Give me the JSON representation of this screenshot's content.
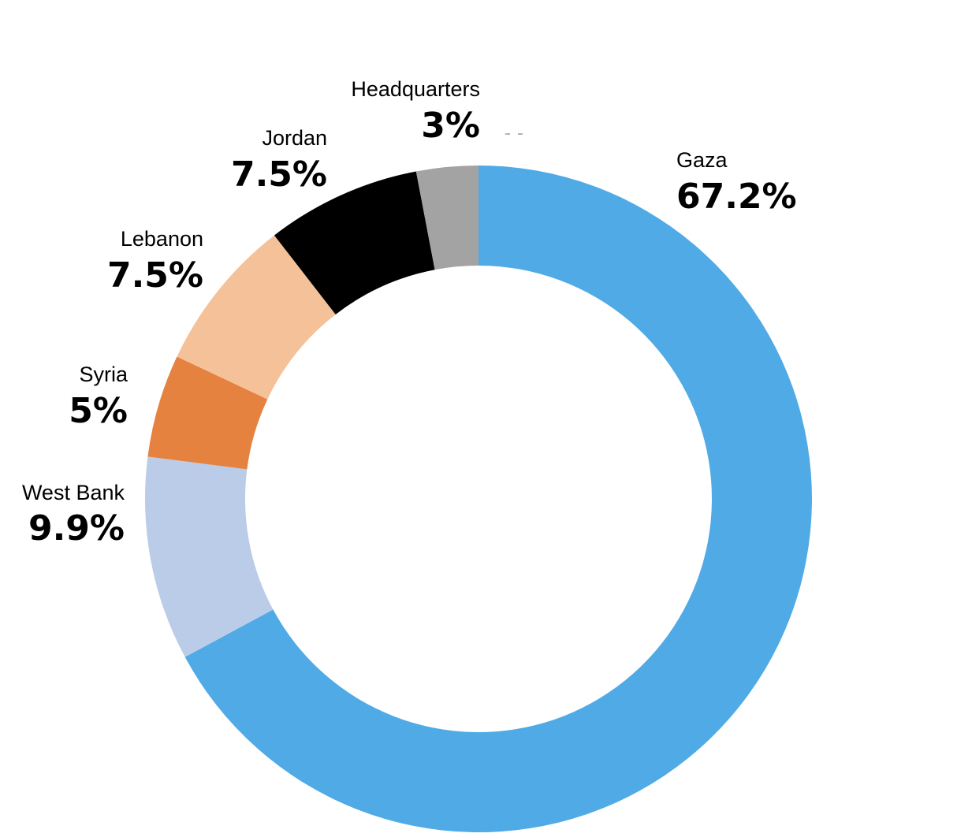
{
  "chart_data": {
    "type": "pie",
    "donut": true,
    "title": "",
    "start": "12 o'clock",
    "direction": "clockwise",
    "slices": [
      {
        "name": "Gaza",
        "label": "67.2%",
        "value": 67.2,
        "color": "#4FAAE6"
      },
      {
        "name": "West Bank",
        "label": "9.9%",
        "value": 9.9,
        "color": "#BBCCE8"
      },
      {
        "name": "Syria",
        "label": "5%",
        "value": 5,
        "color": "#E58240"
      },
      {
        "name": "Lebanon",
        "label": "7.5%",
        "value": 7.5,
        "color": "#F5C199"
      },
      {
        "name": "Jordan",
        "label": "7.5%",
        "value": 7.5,
        "color": "#000000"
      },
      {
        "name": "Headquarters",
        "label": "3%",
        "value": 3,
        "color": "#A3A3A3"
      }
    ]
  }
}
